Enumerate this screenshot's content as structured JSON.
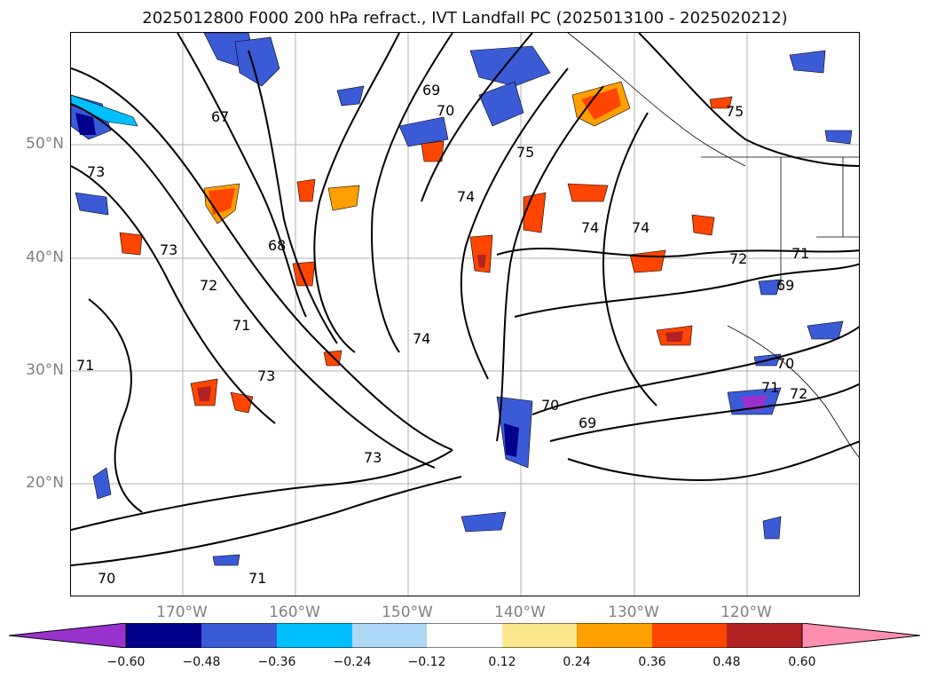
{
  "title": "2025012800 F000 200 hPa refract., IVT Landfall PC (2025013100 - 2025020212)",
  "map": {
    "lat_labels": [
      "50°N",
      "40°N",
      "30°N",
      "20°N"
    ],
    "lon_labels": [
      "170°W",
      "160°W",
      "150°W",
      "140°W",
      "130°W",
      "120°W"
    ],
    "contour_labels": [
      "67",
      "69",
      "70",
      "75",
      "73",
      "74",
      "75",
      "73",
      "68",
      "72",
      "71",
      "71",
      "73",
      "74",
      "72",
      "71",
      "69",
      "70",
      "74",
      "74",
      "70",
      "69",
      "71",
      "72",
      "73",
      "70",
      "71"
    ],
    "grid": true
  },
  "colorbar": {
    "ticks": [
      "−0.60",
      "−0.48",
      "−0.36",
      "−0.24",
      "−0.12",
      "0.12",
      "0.24",
      "0.36",
      "0.48",
      "0.60"
    ],
    "colors": [
      "#9932cc",
      "#00008b",
      "#3b5bd6",
      "#00bfff",
      "#add8f6",
      "#ffffff",
      "#fce88c",
      "#ff9f00",
      "#ff4500",
      "#b22222",
      "#ff8fb0"
    ]
  }
}
